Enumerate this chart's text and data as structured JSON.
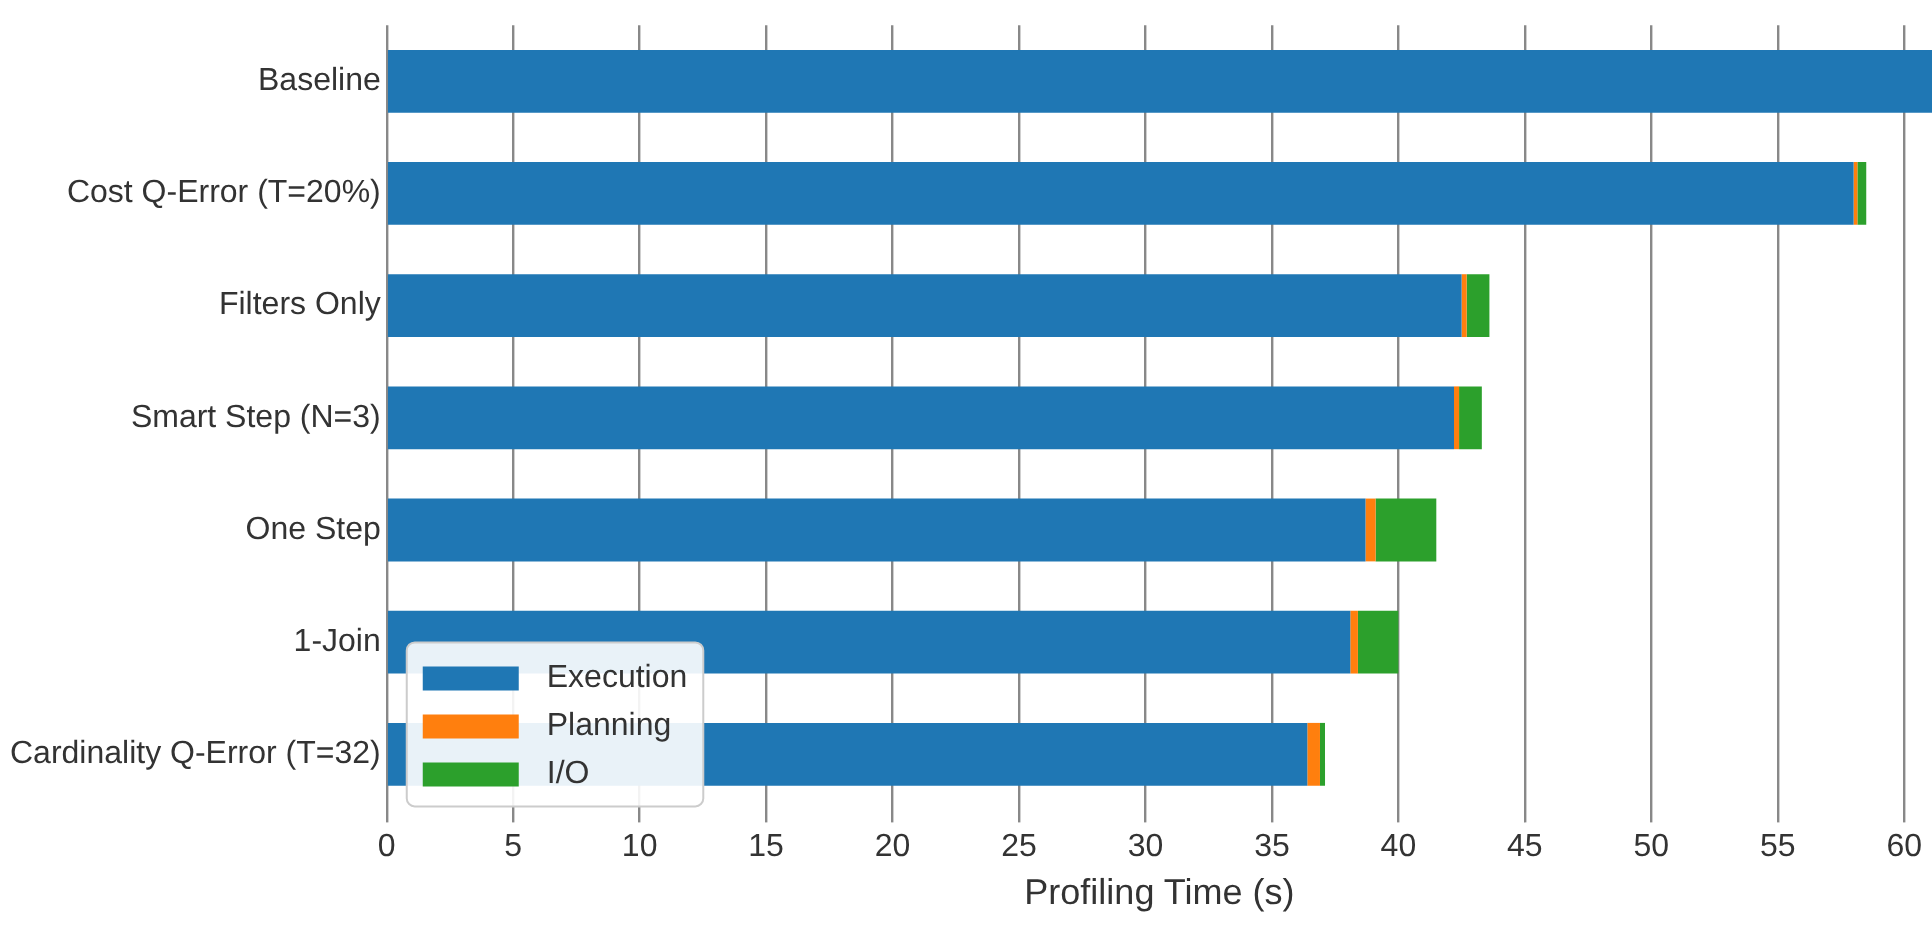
{
  "chart_data": {
    "type": "bar",
    "orientation": "horizontal",
    "stacked": true,
    "xlabel": "Profiling Time (s)",
    "categories": [
      "Baseline",
      "Cost Q-Error (T=20%)",
      "Filters Only",
      "Smart Step (N=3)",
      "One Step",
      "1-Join",
      "Cardinality Q-Error (T=32)"
    ],
    "series": [
      {
        "name": "Execution",
        "color": "#1f77b4",
        "values": [
          61.1,
          58.0,
          42.5,
          42.2,
          38.7,
          38.1,
          36.4
        ]
      },
      {
        "name": "Planning",
        "color": "#ff7f0e",
        "values": [
          0,
          0.15,
          0.2,
          0.2,
          0.4,
          0.3,
          0.5
        ]
      },
      {
        "name": "I/O",
        "color": "#2ca02c",
        "values": [
          0,
          0.35,
          0.9,
          0.9,
          2.4,
          1.6,
          0.2
        ]
      }
    ],
    "xlim": [
      0,
      61.1
    ],
    "xticks": [
      0,
      5,
      10,
      15,
      20,
      25,
      30,
      35,
      40,
      45,
      50,
      55,
      60
    ],
    "grid": "x",
    "legend": "bottom left"
  }
}
